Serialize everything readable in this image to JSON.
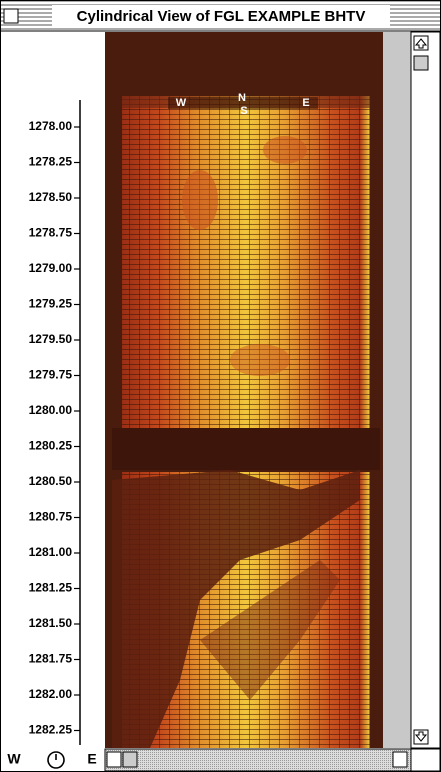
{
  "window": {
    "title": "Cylindrical View of FGL EXAMPLE BHTV"
  },
  "compass": [
    "W",
    "N",
    "S",
    "E"
  ],
  "depth_axis": {
    "ticks": [
      "1278.00",
      "1278.25",
      "1278.50",
      "1278.75",
      "1279.00",
      "1279.25",
      "1279.50",
      "1279.75",
      "1280.00",
      "1280.25",
      "1280.50",
      "1280.75",
      "1281.00",
      "1281.25",
      "1281.50",
      "1281.75",
      "1282.00",
      "1282.25"
    ]
  },
  "footer": {
    "left": "W",
    "right": "E"
  }
}
